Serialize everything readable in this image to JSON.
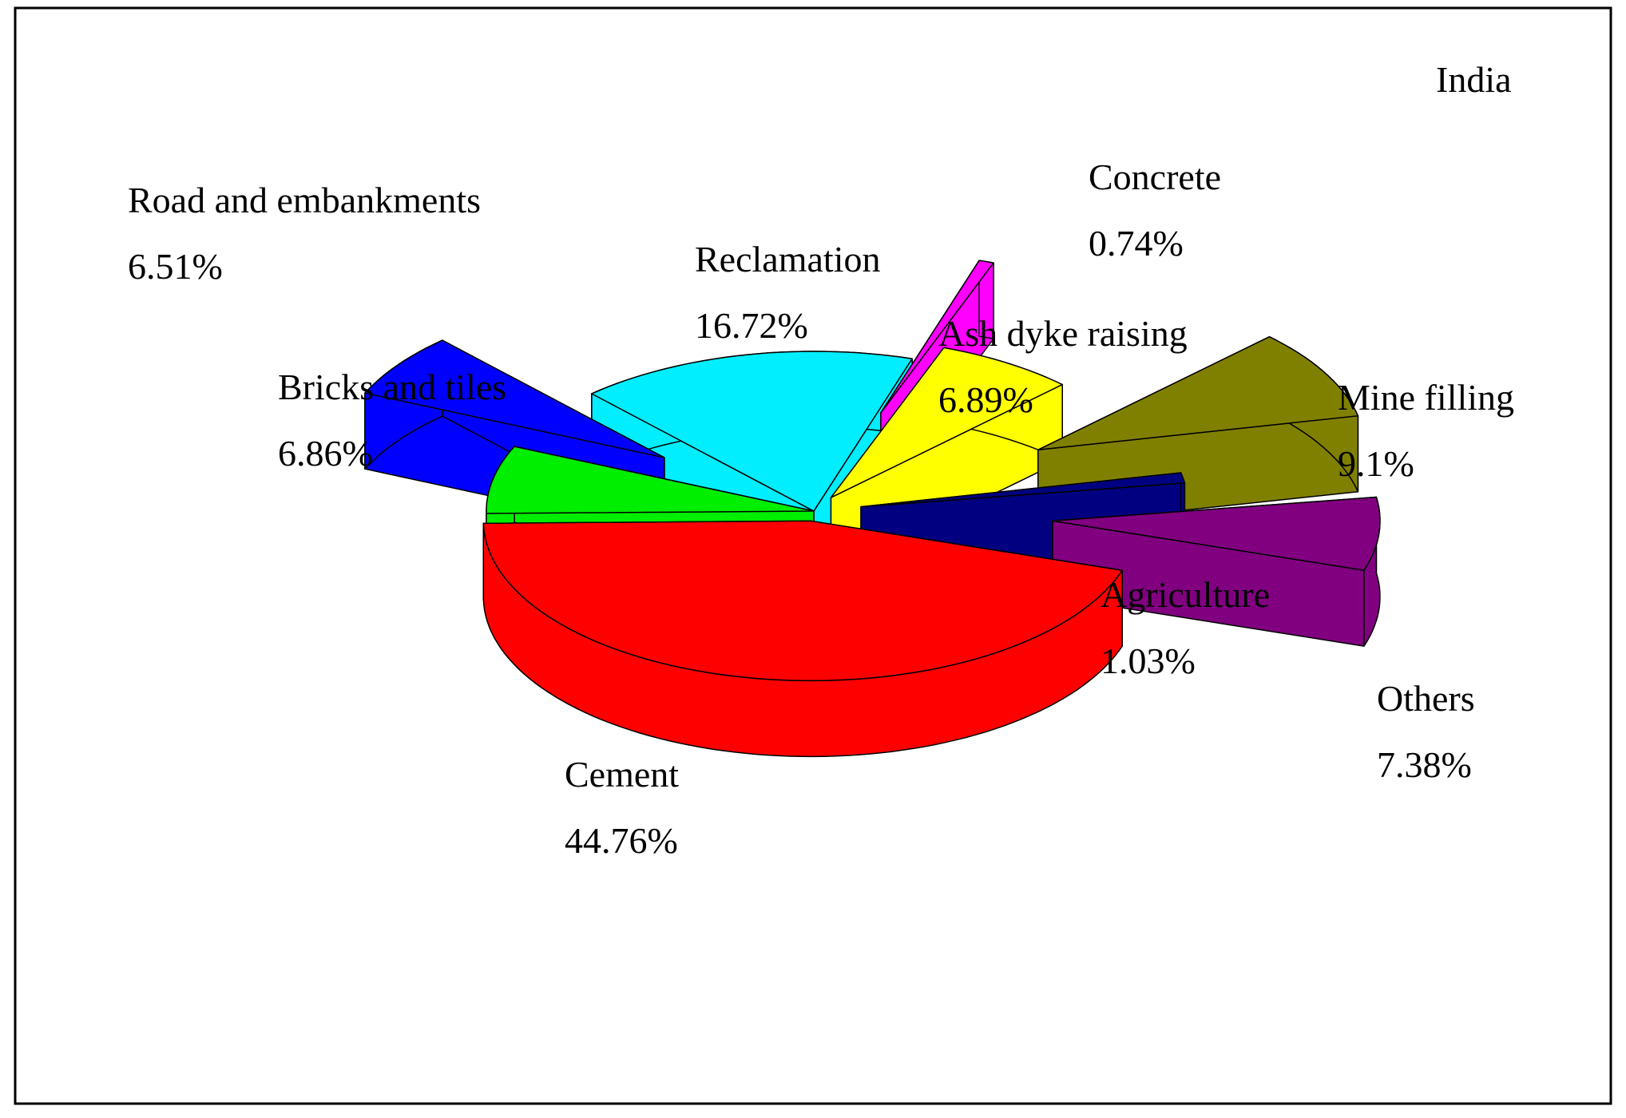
{
  "chart_data": {
    "type": "pie3d",
    "title": "India",
    "categories": [
      "Cement",
      "Bricks and tiles",
      "Road and embankments",
      "Reclamation",
      "Concrete",
      "Ash dyke raising",
      "Mine filling",
      "Agriculture",
      "Others"
    ],
    "values": [
      44.76,
      6.86,
      6.51,
      16.72,
      0.74,
      6.89,
      9.1,
      1.03,
      7.38
    ],
    "value_labels": [
      "44.76%",
      "6.86%",
      "6.51%",
      "16.72%",
      "0.74%",
      "6.89%",
      "9.1%",
      "1.03%",
      "7.38%"
    ],
    "colors": [
      "#ff0000",
      "#00ee00",
      "#0000ff",
      "#00eeff",
      "#ff00ff",
      "#ffff00",
      "#808000",
      "#000080",
      "#800080"
    ]
  }
}
